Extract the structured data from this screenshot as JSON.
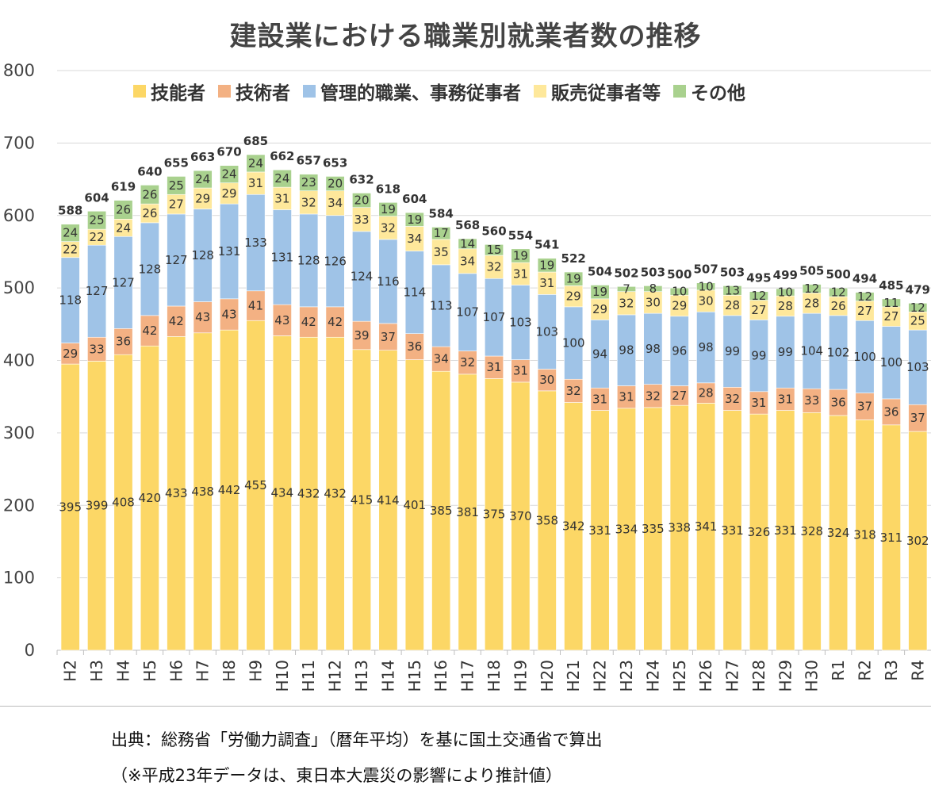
{
  "chart_data": {
    "type": "bar",
    "stacked": true,
    "title": "建設業における職業別就業者数の推移",
    "xlabel": "",
    "ylabel": "",
    "ylim": [
      0,
      800
    ],
    "yticks": [
      "0",
      "100",
      "200",
      "300",
      "400",
      "500",
      "600",
      "700",
      "800"
    ],
    "grid": true,
    "legend_position": "top",
    "categories": [
      "H2",
      "H3",
      "H4",
      "H5",
      "H6",
      "H7",
      "H8",
      "H9",
      "H10",
      "H11",
      "H12",
      "H13",
      "H14",
      "H15",
      "H16",
      "H17",
      "H18",
      "H19",
      "H20",
      "H21",
      "H22",
      "H23",
      "H24",
      "H25",
      "H26",
      "H27",
      "H28",
      "H29",
      "H30",
      "R1",
      "R2",
      "R3",
      "R4"
    ],
    "series": [
      {
        "name": "技能者",
        "color": "#fcd766",
        "values": [
          395,
          399,
          408,
          420,
          433,
          438,
          442,
          455,
          434,
          432,
          432,
          415,
          414,
          401,
          385,
          381,
          375,
          370,
          358,
          342,
          331,
          334,
          335,
          338,
          341,
          331,
          326,
          331,
          328,
          324,
          318,
          311,
          302
        ]
      },
      {
        "name": "技術者",
        "color": "#f3b183",
        "values": [
          29,
          33,
          36,
          42,
          42,
          43,
          43,
          41,
          43,
          42,
          42,
          39,
          37,
          36,
          34,
          32,
          31,
          31,
          30,
          32,
          31,
          31,
          32,
          27,
          28,
          32,
          31,
          31,
          33,
          36,
          37,
          36,
          37
        ]
      },
      {
        "name": "管理的職業、事務従事者",
        "color": "#9fc3e7",
        "values": [
          118,
          127,
          127,
          128,
          127,
          128,
          131,
          133,
          131,
          128,
          126,
          124,
          116,
          114,
          113,
          107,
          107,
          103,
          103,
          100,
          94,
          98,
          98,
          96,
          98,
          99,
          99,
          99,
          104,
          102,
          100,
          100,
          103
        ]
      },
      {
        "name": "販売従事者等",
        "color": "#fee89b",
        "values": [
          22,
          22,
          24,
          26,
          27,
          29,
          29,
          31,
          31,
          32,
          34,
          33,
          32,
          34,
          35,
          34,
          32,
          31,
          31,
          29,
          29,
          32,
          30,
          29,
          30,
          28,
          27,
          28,
          28,
          26,
          27,
          27,
          25
        ]
      },
      {
        "name": "その他",
        "color": "#a9d18e",
        "values": [
          24,
          25,
          26,
          26,
          25,
          24,
          24,
          24,
          24,
          23,
          20,
          20,
          19,
          19,
          17,
          14,
          15,
          19,
          19,
          19,
          19,
          7,
          8,
          10,
          10,
          13,
          12,
          10,
          12,
          12,
          12,
          11,
          12
        ]
      }
    ],
    "totals": [
      588,
      604,
      619,
      640,
      655,
      663,
      670,
      685,
      662,
      657,
      653,
      632,
      618,
      604,
      584,
      568,
      560,
      554,
      541,
      522,
      504,
      502,
      503,
      500,
      507,
      503,
      495,
      499,
      505,
      500,
      494,
      485,
      479
    ]
  },
  "footer": {
    "source": "出典：総務省「労働力調査」（暦年平均）を基に国土交通省で算出",
    "estimate_note": "（※平成23年データは、東日本大震災の影響により推計値）"
  }
}
